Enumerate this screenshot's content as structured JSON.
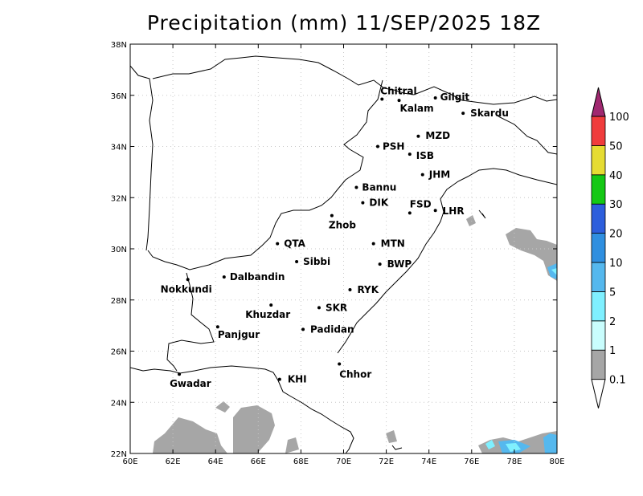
{
  "title": "Precipitation (mm) 11/SEP/2025 18Z",
  "map": {
    "lon_range": [
      60,
      80
    ],
    "lat_range": [
      22,
      38
    ],
    "grid": true,
    "lon_ticks": [
      "60E",
      "62E",
      "64E",
      "66E",
      "68E",
      "70E",
      "72E",
      "74E",
      "76E",
      "78E",
      "80E"
    ],
    "lat_ticks": [
      "22N",
      "24N",
      "26N",
      "28N",
      "30N",
      "32N",
      "34N",
      "36N",
      "38N"
    ],
    "cities": [
      {
        "name": "Chitral",
        "lon": 71.8,
        "lat": 35.85
      },
      {
        "name": "Gilgit",
        "lon": 74.3,
        "lat": 35.9
      },
      {
        "name": "Kalam",
        "lon": 72.6,
        "lat": 35.8
      },
      {
        "name": "Skardu",
        "lon": 75.6,
        "lat": 35.3
      },
      {
        "name": "MZD",
        "lon": 73.5,
        "lat": 34.4
      },
      {
        "name": "PSH",
        "lon": 71.6,
        "lat": 34.0
      },
      {
        "name": "ISB",
        "lon": 73.1,
        "lat": 33.7
      },
      {
        "name": "JHM",
        "lon": 73.7,
        "lat": 32.9
      },
      {
        "name": "Bannu",
        "lon": 70.6,
        "lat": 32.4
      },
      {
        "name": "DIK",
        "lon": 70.9,
        "lat": 31.8
      },
      {
        "name": "FSD",
        "lon": 73.1,
        "lat": 31.4
      },
      {
        "name": "LHR",
        "lon": 74.3,
        "lat": 31.5
      },
      {
        "name": "Zhob",
        "lon": 69.45,
        "lat": 31.3
      },
      {
        "name": "QTA",
        "lon": 66.9,
        "lat": 30.2
      },
      {
        "name": "MTN",
        "lon": 71.4,
        "lat": 30.2
      },
      {
        "name": "Sibbi",
        "lon": 67.8,
        "lat": 29.5
      },
      {
        "name": "BWP",
        "lon": 71.7,
        "lat": 29.4
      },
      {
        "name": "Nokkundi",
        "lon": 62.7,
        "lat": 28.8
      },
      {
        "name": "Dalbandin",
        "lon": 64.4,
        "lat": 28.9
      },
      {
        "name": "RYK",
        "lon": 70.3,
        "lat": 28.4
      },
      {
        "name": "Khuzdar",
        "lon": 66.6,
        "lat": 27.8
      },
      {
        "name": "SKR",
        "lon": 68.85,
        "lat": 27.7
      },
      {
        "name": "Panjgur",
        "lon": 64.1,
        "lat": 26.95
      },
      {
        "name": "Padidan",
        "lon": 68.1,
        "lat": 26.85
      },
      {
        "name": "Chhor",
        "lon": 69.8,
        "lat": 25.5
      },
      {
        "name": "Gwadar",
        "lon": 62.3,
        "lat": 25.1
      },
      {
        "name": "KHI",
        "lon": 67.0,
        "lat": 24.9
      }
    ]
  },
  "colorbar": {
    "labels": [
      "0.1",
      "1",
      "2",
      "5",
      "10",
      "20",
      "30",
      "40",
      "50",
      "100"
    ],
    "colors": [
      "#a6a6a6",
      "#c9fdfd",
      "#7ff0ff",
      "#55b8ee",
      "#2f8fe0",
      "#2d5edc",
      "#14c814",
      "#e6dc32",
      "#f03c3c",
      "#a02870"
    ]
  }
}
